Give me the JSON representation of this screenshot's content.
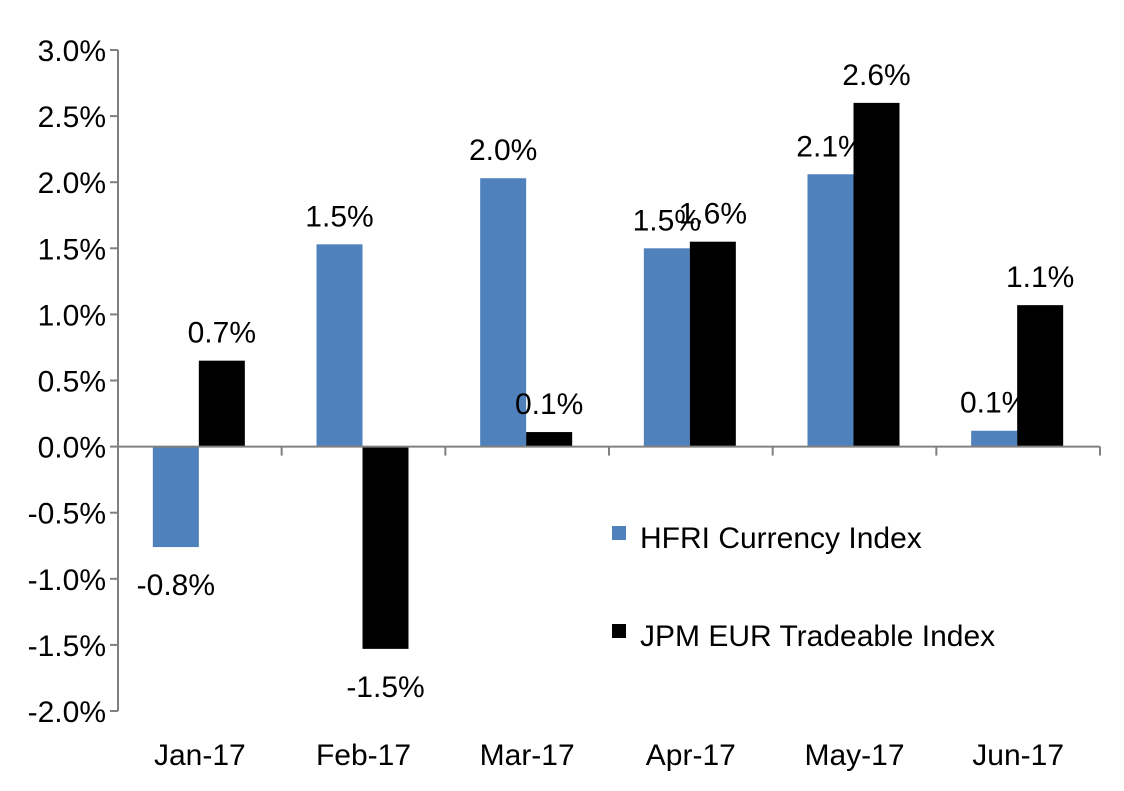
{
  "chart_data": {
    "type": "bar",
    "categories": [
      "Jan-17",
      "Feb-17",
      "Mar-17",
      "Apr-17",
      "May-17",
      "Jun-17"
    ],
    "series": [
      {
        "name": "HFRI Currency Index",
        "color": "#4F81BD",
        "values": [
          -0.76,
          1.53,
          2.03,
          1.5,
          2.06,
          0.12
        ],
        "labels": [
          "-0.8%",
          "1.5%",
          "2.0%",
          "1.5%",
          "2.1%",
          "0.1%"
        ]
      },
      {
        "name": "JPM EUR Tradeable Index",
        "color": "#000000",
        "values": [
          0.65,
          -1.53,
          0.11,
          1.55,
          2.6,
          1.07
        ],
        "labels": [
          "0.7%",
          "-1.5%",
          "0.1%",
          "1.6%",
          "2.6%",
          "1.1%"
        ]
      }
    ],
    "y_ticks": [
      "3.0%",
      "2.5%",
      "2.0%",
      "1.5%",
      "1.0%",
      "0.5%",
      "0.0%",
      "-0.5%",
      "-1.0%",
      "-1.5%",
      "-2.0%"
    ],
    "ylim": [
      -2.0,
      3.0
    ],
    "y_tick_step": 0.5,
    "grid": false,
    "legend_position": "lower-right inside plot"
  }
}
